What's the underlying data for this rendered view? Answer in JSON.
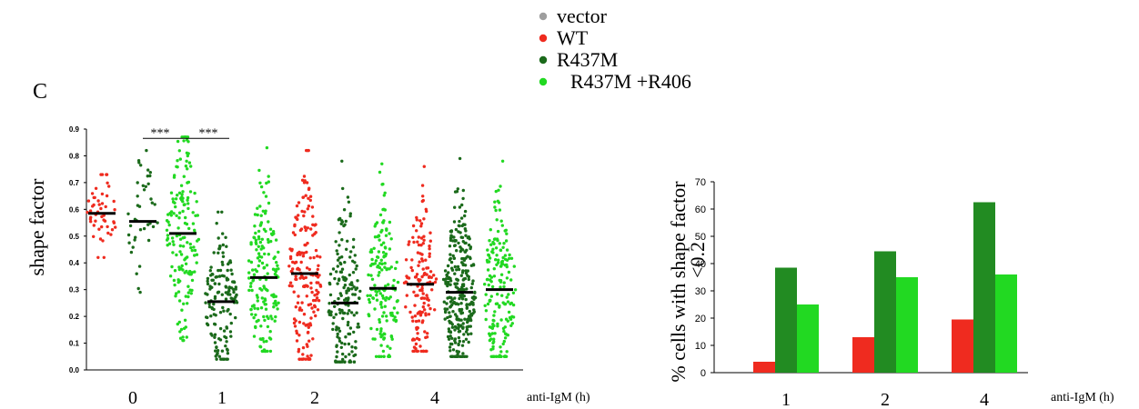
{
  "panel_label": "C",
  "legend": [
    {
      "label": "vector",
      "color": "#9e9e9e"
    },
    {
      "label": "WT",
      "color": "#ef2b1f"
    },
    {
      "label": "R437M",
      "color": "#1b6a1b"
    },
    {
      "label": "R437M +R406",
      "color": "#22d922"
    }
  ],
  "colors": {
    "vector": "#9e9e9e",
    "WT": "#ef2b1f",
    "R437M_dots": "#1b6a1b",
    "R437M_bar": "#228b22",
    "R437M_R406": "#22d922",
    "mean_line": "#000000",
    "axis": "#000000"
  },
  "chart_data": [
    {
      "type": "scatter",
      "ylabel": "shape factor",
      "xlabel": "anti-IgM (h)",
      "ylim": [
        0,
        0.9
      ],
      "yticks": [
        "0.0",
        "0.1",
        "0.2",
        "0.3",
        "0.4",
        "0.5",
        "0.6",
        "0.7",
        "0.8",
        "0.9"
      ],
      "categories": [
        "0",
        "1",
        "2",
        "4"
      ],
      "significance": [
        {
          "label": "***",
          "between": [
            "0/R437M",
            "1/R437M"
          ]
        },
        {
          "label": "***",
          "between": [
            "1/WT",
            "1/R437M"
          ]
        }
      ],
      "groups": [
        {
          "timepoint": "0",
          "series": "WT",
          "mean": 0.585,
          "min": 0.42,
          "max": 0.73,
          "n": 50
        },
        {
          "timepoint": "0",
          "series": "R437M",
          "mean": 0.555,
          "min": 0.29,
          "max": 0.82,
          "n": 40
        },
        {
          "timepoint": "0",
          "series": "R437M +R406",
          "mean": 0.51,
          "min": 0.11,
          "max": 0.87,
          "n": 160
        },
        {
          "timepoint": "1",
          "series": "R437M",
          "mean": 0.255,
          "min": 0.04,
          "max": 0.59,
          "n": 150
        },
        {
          "timepoint": "1",
          "series": "R437M +R406",
          "mean": 0.345,
          "min": 0.07,
          "max": 0.83,
          "n": 170
        },
        {
          "timepoint": "1",
          "series": "WT",
          "mean": 0.36,
          "min": 0.04,
          "max": 0.82,
          "n": 180
        },
        {
          "timepoint": "2",
          "series": "R437M",
          "mean": 0.25,
          "min": 0.03,
          "max": 0.78,
          "n": 170
        },
        {
          "timepoint": "2",
          "series": "R437M +R406",
          "mean": 0.305,
          "min": 0.05,
          "max": 0.77,
          "n": 160
        },
        {
          "timepoint": "2",
          "series": "WT",
          "mean": 0.32,
          "min": 0.07,
          "max": 0.76,
          "n": 150
        },
        {
          "timepoint": "4",
          "series": "R437M",
          "mean": 0.29,
          "min": 0.05,
          "max": 0.79,
          "n": 300
        },
        {
          "timepoint": "4",
          "series": "R437M +R406",
          "mean": 0.3,
          "min": 0.05,
          "max": 0.78,
          "n": 180
        }
      ]
    },
    {
      "type": "bar",
      "ylabel": "% cells with shape factor <0.2",
      "xlabel": "anti-IgM (h)",
      "ylim": [
        0,
        70
      ],
      "yticks": [
        "0",
        "10",
        "20",
        "30",
        "40",
        "50",
        "60",
        "70"
      ],
      "categories": [
        "1",
        "2",
        "4"
      ],
      "series": [
        {
          "name": "WT",
          "values": [
            4,
            13,
            19.5
          ]
        },
        {
          "name": "R437M",
          "values": [
            38.5,
            44.5,
            62.5
          ]
        },
        {
          "name": "R437M +R406",
          "values": [
            25,
            35,
            36
          ]
        }
      ]
    }
  ]
}
